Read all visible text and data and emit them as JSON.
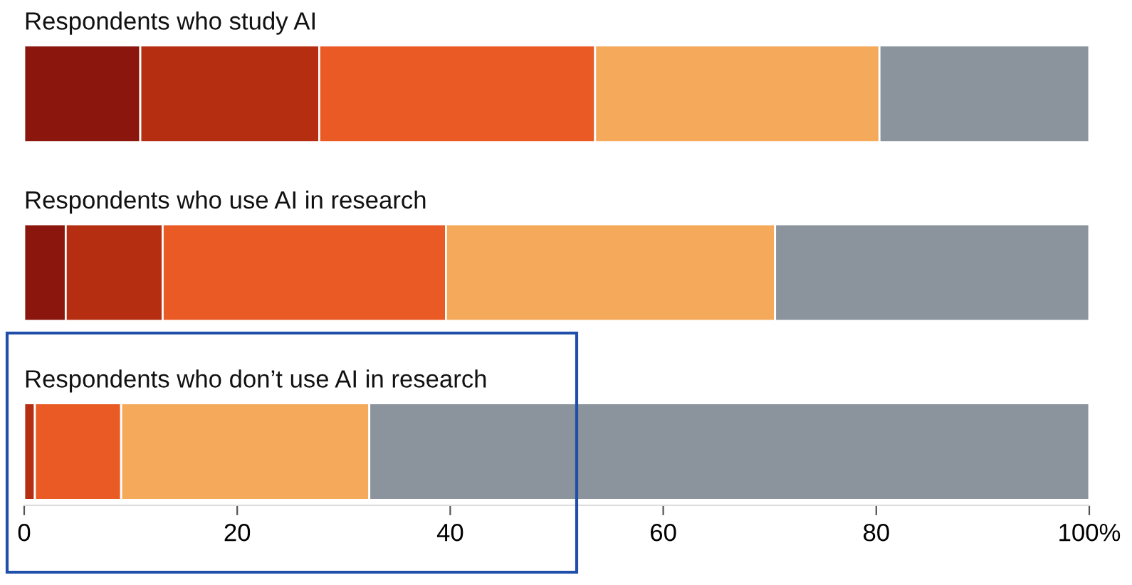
{
  "chart_data": {
    "type": "bar",
    "orientation": "horizontal",
    "stacked": true,
    "categories": [
      "Respondents who study AI",
      "Respondents who use AI in research",
      "Respondents who don’t use AI in research"
    ],
    "series": [
      {
        "color": "#8a160d",
        "values": [
          10.9,
          3.9,
          0
        ]
      },
      {
        "color": "#b52e12",
        "values": [
          16.8,
          9.1,
          1.0
        ]
      },
      {
        "color": "#e95a24",
        "values": [
          25.9,
          26.6,
          8.1
        ]
      },
      {
        "color": "#f4aa5a",
        "values": [
          26.7,
          30.9,
          23.3
        ]
      },
      {
        "color": "#8b949d",
        "values": [
          19.7,
          29.5,
          67.6
        ]
      }
    ],
    "xlim": [
      0,
      100
    ],
    "xticks": [
      0,
      20,
      40,
      60,
      80,
      {
        "value": 100,
        "label": "100%"
      }
    ],
    "grid": false,
    "legend": false
  }
}
